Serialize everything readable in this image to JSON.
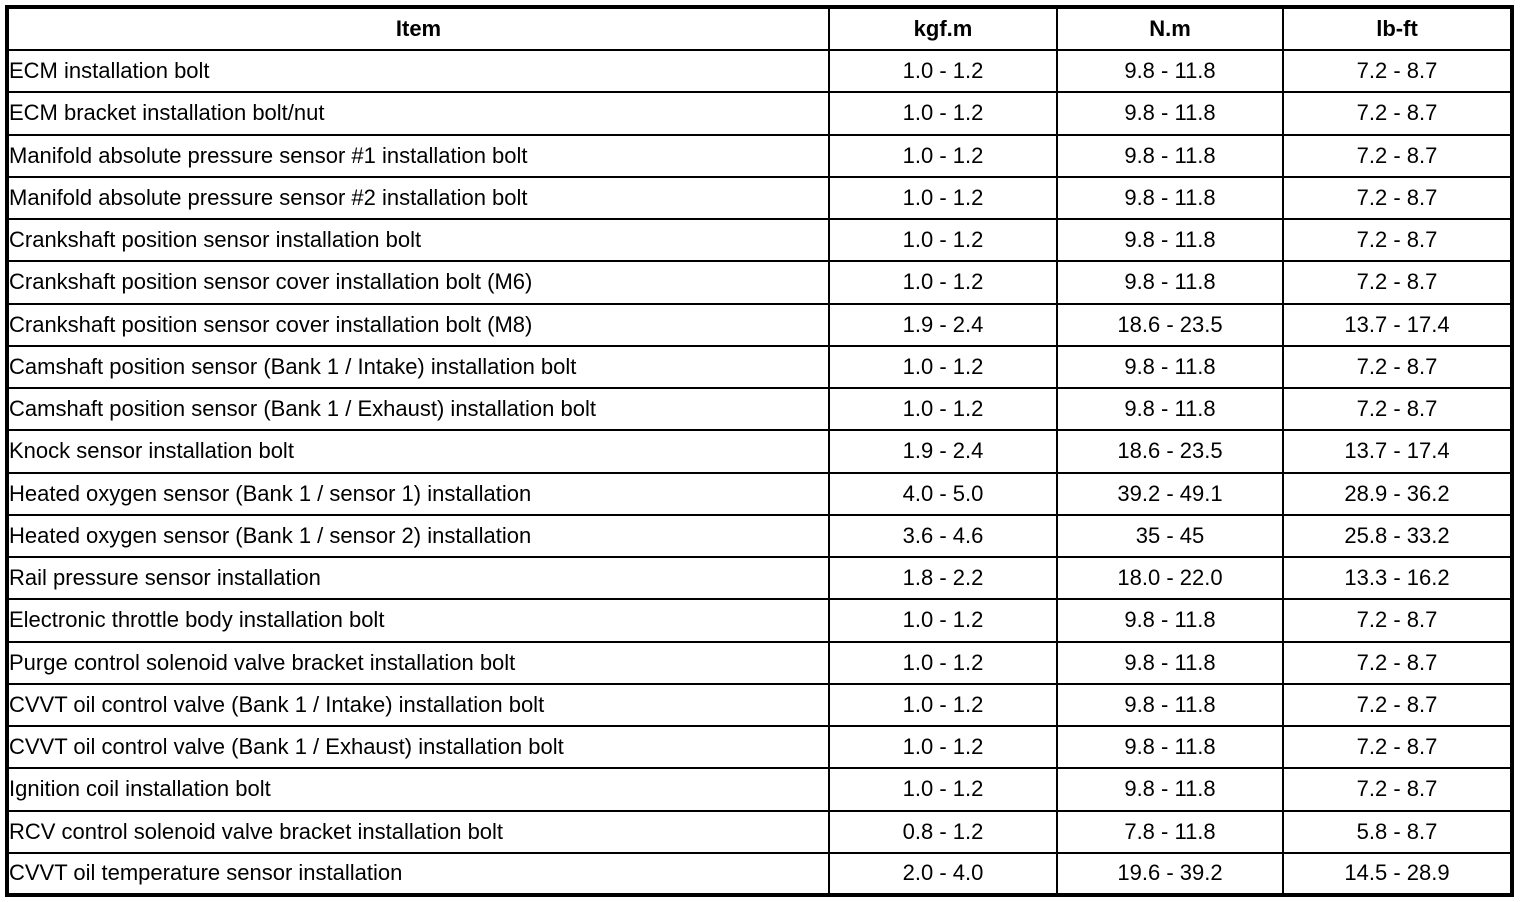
{
  "table": {
    "columns": [
      "Item",
      "kgf.m",
      "N.m",
      "lb-ft"
    ],
    "rows": [
      {
        "item": "ECM installation bolt",
        "kgfm": "1.0 - 1.2",
        "nm": "9.8 - 11.8",
        "lbft": "7.2 - 8.7"
      },
      {
        "item": "ECM bracket installation bolt/nut",
        "kgfm": "1.0 - 1.2",
        "nm": "9.8 - 11.8",
        "lbft": "7.2 - 8.7"
      },
      {
        "item": "Manifold absolute pressure sensor #1 installation bolt",
        "kgfm": "1.0 - 1.2",
        "nm": "9.8 - 11.8",
        "lbft": "7.2 - 8.7"
      },
      {
        "item": "Manifold absolute pressure sensor #2 installation bolt",
        "kgfm": "1.0 - 1.2",
        "nm": "9.8 - 11.8",
        "lbft": "7.2 - 8.7"
      },
      {
        "item": "Crankshaft position sensor installation bolt",
        "kgfm": "1.0 - 1.2",
        "nm": "9.8 - 11.8",
        "lbft": "7.2 - 8.7"
      },
      {
        "item": "Crankshaft position sensor cover installation bolt (M6)",
        "kgfm": "1.0 - 1.2",
        "nm": "9.8 - 11.8",
        "lbft": "7.2 - 8.7"
      },
      {
        "item": "Crankshaft position sensor cover installation bolt (M8)",
        "kgfm": "1.9 - 2.4",
        "nm": "18.6 - 23.5",
        "lbft": "13.7 - 17.4"
      },
      {
        "item": "Camshaft position sensor (Bank 1 / Intake) installation bolt",
        "kgfm": "1.0 - 1.2",
        "nm": "9.8 - 11.8",
        "lbft": "7.2 - 8.7"
      },
      {
        "item": "Camshaft position sensor (Bank 1 / Exhaust) installation bolt",
        "kgfm": "1.0 - 1.2",
        "nm": "9.8 - 11.8",
        "lbft": "7.2 - 8.7"
      },
      {
        "item": "Knock sensor installation bolt",
        "kgfm": "1.9 - 2.4",
        "nm": "18.6 - 23.5",
        "lbft": "13.7 - 17.4"
      },
      {
        "item": "Heated oxygen sensor (Bank 1 / sensor 1) installation",
        "kgfm": "4.0 - 5.0",
        "nm": "39.2 - 49.1",
        "lbft": "28.9 - 36.2"
      },
      {
        "item": "Heated oxygen sensor (Bank 1 / sensor 2) installation",
        "kgfm": "3.6 - 4.6",
        "nm": "35 - 45",
        "lbft": "25.8 - 33.2"
      },
      {
        "item": "Rail pressure sensor installation",
        "kgfm": "1.8 - 2.2",
        "nm": "18.0 - 22.0",
        "lbft": "13.3 - 16.2"
      },
      {
        "item": "Electronic throttle body installation bolt",
        "kgfm": "1.0 - 1.2",
        "nm": "9.8 - 11.8",
        "lbft": "7.2 - 8.7"
      },
      {
        "item": "Purge control solenoid valve bracket installation bolt",
        "kgfm": "1.0 - 1.2",
        "nm": "9.8 - 11.8",
        "lbft": "7.2 - 8.7"
      },
      {
        "item": "CVVT oil control valve (Bank 1 / Intake) installation bolt",
        "kgfm": "1.0 - 1.2",
        "nm": "9.8 - 11.8",
        "lbft": "7.2 - 8.7"
      },
      {
        "item": "CVVT oil control valve (Bank 1 / Exhaust) installation bolt",
        "kgfm": "1.0 - 1.2",
        "nm": "9.8 - 11.8",
        "lbft": "7.2 - 8.7"
      },
      {
        "item": "Ignition coil installation bolt",
        "kgfm": "1.0 - 1.2",
        "nm": "9.8 - 11.8",
        "lbft": "7.2 - 8.7"
      },
      {
        "item": "RCV control solenoid valve bracket installation bolt",
        "kgfm": "0.8 - 1.2",
        "nm": "7.8 - 11.8",
        "lbft": "5.8 - 8.7"
      },
      {
        "item": "CVVT oil temperature sensor installation",
        "kgfm": "2.0 - 4.0",
        "nm": "19.6 - 39.2",
        "lbft": "14.5 - 28.9"
      }
    ]
  }
}
